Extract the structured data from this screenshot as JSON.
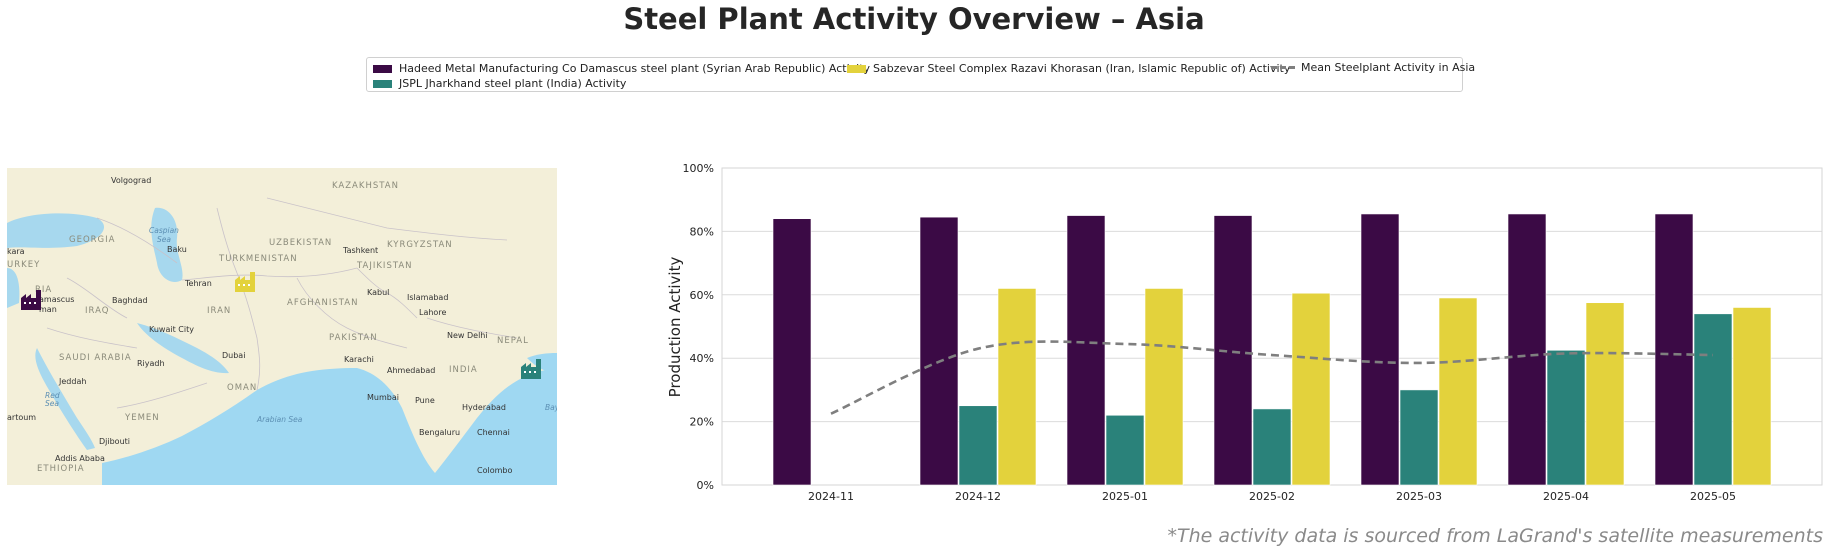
{
  "title": "Steel Plant Activity Overview – Asia",
  "footnote": "*The activity data is sourced from LaGrand's satellite measurements",
  "legend": {
    "items": [
      {
        "label": "Hadeed Metal Manufacturing Co Damascus steel plant (Syrian Arab Republic) Activity",
        "color": "#3b0a45"
      },
      {
        "label": "JSPL Jharkhand steel plant (India) Activity",
        "color": "#2a827a"
      },
      {
        "label": "Sabzevar Steel Complex Razavi Khorasan (Iran, Islamic Republic of) Activity",
        "color": "#e3d23c"
      },
      {
        "label": "Mean Steelplant Activity in Asia",
        "color": "#7f7f7f"
      }
    ]
  },
  "map": {
    "labels": [
      {
        "text": "Volgograd"
      },
      {
        "text": "KAZAKHSTAN"
      },
      {
        "text": "GEORGIA"
      },
      {
        "text": "Caspian"
      },
      {
        "text": "Sea"
      },
      {
        "text": "Baku"
      },
      {
        "text": "UZBEKISTAN"
      },
      {
        "text": "Tashkent"
      },
      {
        "text": "KYRGYZSTAN"
      },
      {
        "text": "kara"
      },
      {
        "text": "URKEY"
      },
      {
        "text": "TURKMENISTAN"
      },
      {
        "text": "TAJIKISTAN"
      },
      {
        "text": "Tehran"
      },
      {
        "text": "RIA"
      },
      {
        "text": "amascus"
      },
      {
        "text": "man"
      },
      {
        "text": "Baghdad"
      },
      {
        "text": "IRAQ"
      },
      {
        "text": "IRAN"
      },
      {
        "text": "AFGHANISTAN"
      },
      {
        "text": "Kabul"
      },
      {
        "text": "Islamabad"
      },
      {
        "text": "Lahore"
      },
      {
        "text": "Kuwait City"
      },
      {
        "text": "New Delhi"
      },
      {
        "text": "PAKISTAN"
      },
      {
        "text": "NEPAL"
      },
      {
        "text": "SAUDI ARABIA"
      },
      {
        "text": "Riyadh"
      },
      {
        "text": "Dubai"
      },
      {
        "text": "Karachi"
      },
      {
        "text": "Ahmedabad"
      },
      {
        "text": "INDIA"
      },
      {
        "text": "Jeddah"
      },
      {
        "text": "OMAN"
      },
      {
        "text": "Red"
      },
      {
        "text": "Sea"
      },
      {
        "text": "Mumbai"
      },
      {
        "text": "Pune"
      },
      {
        "text": "Hyderabad"
      },
      {
        "text": "artoum"
      },
      {
        "text": "YEMEN"
      },
      {
        "text": "Arabian Sea"
      },
      {
        "text": "Bengaluru"
      },
      {
        "text": "Chennai"
      },
      {
        "text": "Djibouti"
      },
      {
        "text": "Addis Ababa"
      },
      {
        "text": "ETHIOPIA"
      },
      {
        "text": "Colombo"
      },
      {
        "text": "Bay"
      }
    ],
    "markers": [
      {
        "plant": "Hadeed Metal Manufacturing Co Damascus",
        "color": "#3b0a45",
        "icon": "factory-icon"
      },
      {
        "plant": "Sabzevar Steel Complex",
        "color": "#e3d23c",
        "icon": "factory-icon"
      },
      {
        "plant": "JSPL Jharkhand",
        "color": "#2a827a",
        "icon": "factory-icon"
      }
    ]
  },
  "chart_data": {
    "type": "bar",
    "categories": [
      "2024-11",
      "2024-12",
      "2025-01",
      "2025-02",
      "2025-03",
      "2025-04",
      "2025-05"
    ],
    "series": [
      {
        "name": "Hadeed Metal Manufacturing Co Damascus steel plant (Syrian Arab Republic) Activity",
        "color": "#3b0a45",
        "values": [
          84,
          84.5,
          85,
          85,
          85.5,
          85.5,
          85.5
        ]
      },
      {
        "name": "JSPL Jharkhand steel plant (India) Activity",
        "color": "#2a827a",
        "values": [
          null,
          25,
          22,
          24,
          30,
          42.5,
          54
        ]
      },
      {
        "name": "Sabzevar Steel Complex Razavi Khorasan (Iran, Islamic Republic of) Activity",
        "color": "#e3d23c",
        "values": [
          null,
          62,
          62,
          60.5,
          59,
          57.5,
          56
        ]
      }
    ],
    "line": {
      "name": "Mean Steelplant Activity in Asia",
      "color": "#7f7f7f",
      "values": [
        22.5,
        43,
        44.5,
        41,
        38.5,
        41.5,
        41
      ]
    },
    "ylabel": "Production Activity",
    "ylim": [
      0,
      100
    ],
    "yticks": [
      "0%",
      "20%",
      "40%",
      "60%",
      "80%",
      "100%"
    ],
    "grid": true,
    "legend_position": "top-center"
  }
}
